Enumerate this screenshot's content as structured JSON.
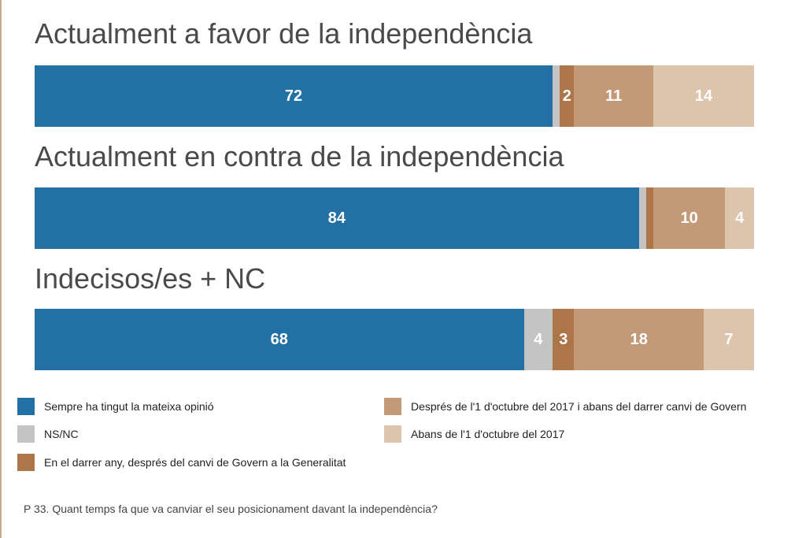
{
  "chart_data": {
    "type": "bar",
    "orientation": "horizontal",
    "stacked": true,
    "xlim": [
      0,
      100
    ],
    "categories": [
      "Actualment a favor de la independència",
      "Actualment en contra de la independència",
      "Indecisos/es + NC"
    ],
    "series": [
      {
        "name": "Sempre ha tingut la mateixa opinió",
        "color": "#2370a5",
        "values": [
          72,
          84,
          68
        ],
        "labels": [
          "72",
          "84",
          "68"
        ]
      },
      {
        "name": "NS/NC",
        "color": "#c4c4c4",
        "values": [
          1,
          1,
          4
        ],
        "labels": [
          "",
          "",
          "4"
        ]
      },
      {
        "name": "En el darrer any, després del canvi de Govern a la Generalitat",
        "color": "#ac7648",
        "values": [
          2,
          1,
          3
        ],
        "labels": [
          "2",
          "",
          "3"
        ]
      },
      {
        "name": "Després de l'1 d'octubre del 2017 i abans del darrer canvi de Govern",
        "color": "#c29a77",
        "values": [
          11,
          10,
          18
        ],
        "labels": [
          "11",
          "10",
          "18"
        ]
      },
      {
        "name": "Abans de l'1 d'octubre del 2017",
        "color": "#dcc4ad",
        "values": [
          14,
          4,
          7
        ],
        "labels": [
          "14",
          "4",
          "7"
        ]
      }
    ]
  },
  "footnote": "P 33. Quant temps fa que va canviar el seu posicionament davant la independència?"
}
